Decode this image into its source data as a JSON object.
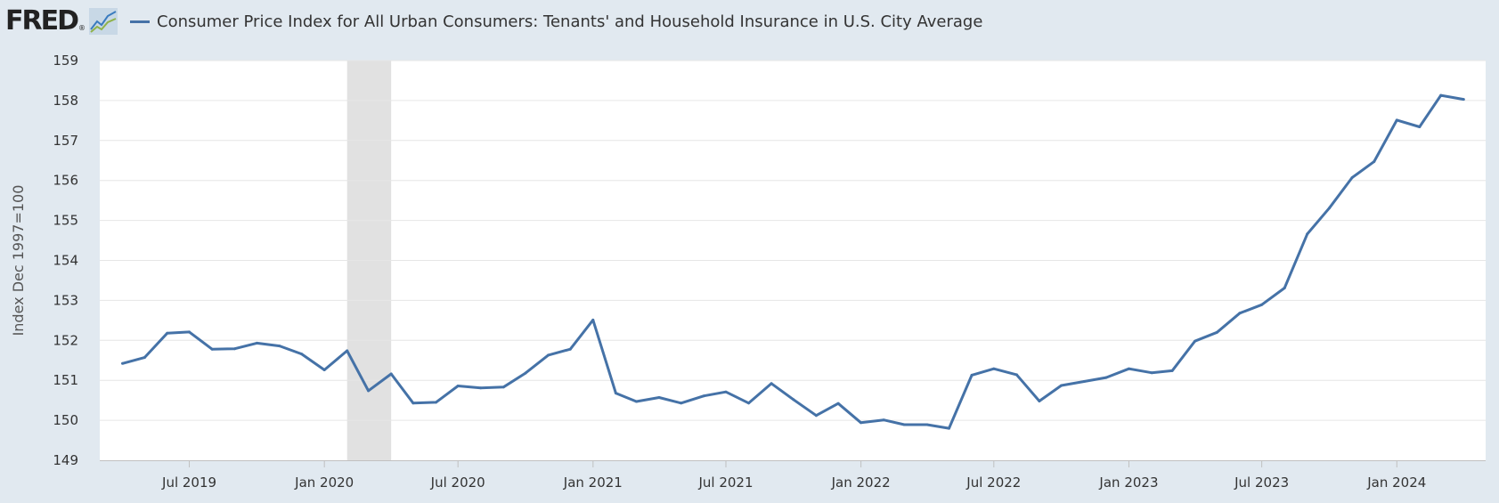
{
  "header": {
    "logo_text": "FRED",
    "logo_reg": "®",
    "series_title": "Consumer Price Index for All Urban Consumers: Tenants' and Household Insurance in U.S. City Average"
  },
  "colors": {
    "line": "#4572a7",
    "background": "#e1e9f0",
    "plot_background": "#ffffff",
    "recession": "#e1e1e1",
    "gridline": "#e6e6e6"
  },
  "chart_data": {
    "type": "line",
    "ylabel": "Index Dec 1997=100",
    "ylim": [
      149,
      159
    ],
    "xlim": [
      "2019-03-01",
      "2024-05-01"
    ],
    "y_ticks": [
      149,
      150,
      151,
      152,
      153,
      154,
      155,
      156,
      157,
      158,
      159
    ],
    "x_ticks": [
      {
        "date": "2019-07-01",
        "label": "Jul 2019"
      },
      {
        "date": "2020-01-01",
        "label": "Jan 2020"
      },
      {
        "date": "2020-07-01",
        "label": "Jul 2020"
      },
      {
        "date": "2021-01-01",
        "label": "Jan 2021"
      },
      {
        "date": "2021-07-01",
        "label": "Jul 2021"
      },
      {
        "date": "2022-01-01",
        "label": "Jan 2022"
      },
      {
        "date": "2022-07-01",
        "label": "Jul 2022"
      },
      {
        "date": "2023-01-01",
        "label": "Jan 2023"
      },
      {
        "date": "2023-07-01",
        "label": "Jul 2023"
      },
      {
        "date": "2024-01-01",
        "label": "Jan 2024"
      }
    ],
    "recession": {
      "start": "2020-02-01",
      "end": "2020-04-01"
    },
    "grid": true,
    "series": [
      {
        "x": [
          "2019-04",
          "2019-05",
          "2019-06",
          "2019-07",
          "2019-08",
          "2019-09",
          "2019-10",
          "2019-11",
          "2019-12",
          "2020-01",
          "2020-02",
          "2020-03",
          "2020-04",
          "2020-05",
          "2020-06",
          "2020-07",
          "2020-08",
          "2020-09",
          "2020-10",
          "2020-11",
          "2020-12",
          "2021-01",
          "2021-02",
          "2021-03",
          "2021-04",
          "2021-05",
          "2021-06",
          "2021-07",
          "2021-08",
          "2021-09",
          "2021-10",
          "2021-11",
          "2021-12",
          "2022-01",
          "2022-02",
          "2022-03",
          "2022-04",
          "2022-05",
          "2022-06",
          "2022-07",
          "2022-08",
          "2022-09",
          "2022-10",
          "2022-11",
          "2022-12",
          "2023-01",
          "2023-02",
          "2023-03",
          "2023-04",
          "2023-05",
          "2023-06",
          "2023-07",
          "2023-08",
          "2023-09",
          "2023-10",
          "2023-11",
          "2023-12",
          "2024-01",
          "2024-02",
          "2024-03",
          "2024-04"
        ],
        "values": [
          151.42,
          151.57,
          152.18,
          152.21,
          151.78,
          151.79,
          151.93,
          151.86,
          151.66,
          151.26,
          151.74,
          150.74,
          151.16,
          150.43,
          150.45,
          150.86,
          150.81,
          150.83,
          151.18,
          151.63,
          151.78,
          152.51,
          150.68,
          150.47,
          150.57,
          150.43,
          150.61,
          150.71,
          150.43,
          150.92,
          150.52,
          150.12,
          150.42,
          149.94,
          150.01,
          149.89,
          149.89,
          149.8,
          151.13,
          151.29,
          151.14,
          150.48,
          150.87,
          150.97,
          151.07,
          151.29,
          151.19,
          151.24,
          151.98,
          152.2,
          152.68,
          152.89,
          153.31,
          154.66,
          155.31,
          156.07,
          156.47,
          157.51,
          157.34,
          158.13,
          158.03
        ]
      }
    ]
  }
}
